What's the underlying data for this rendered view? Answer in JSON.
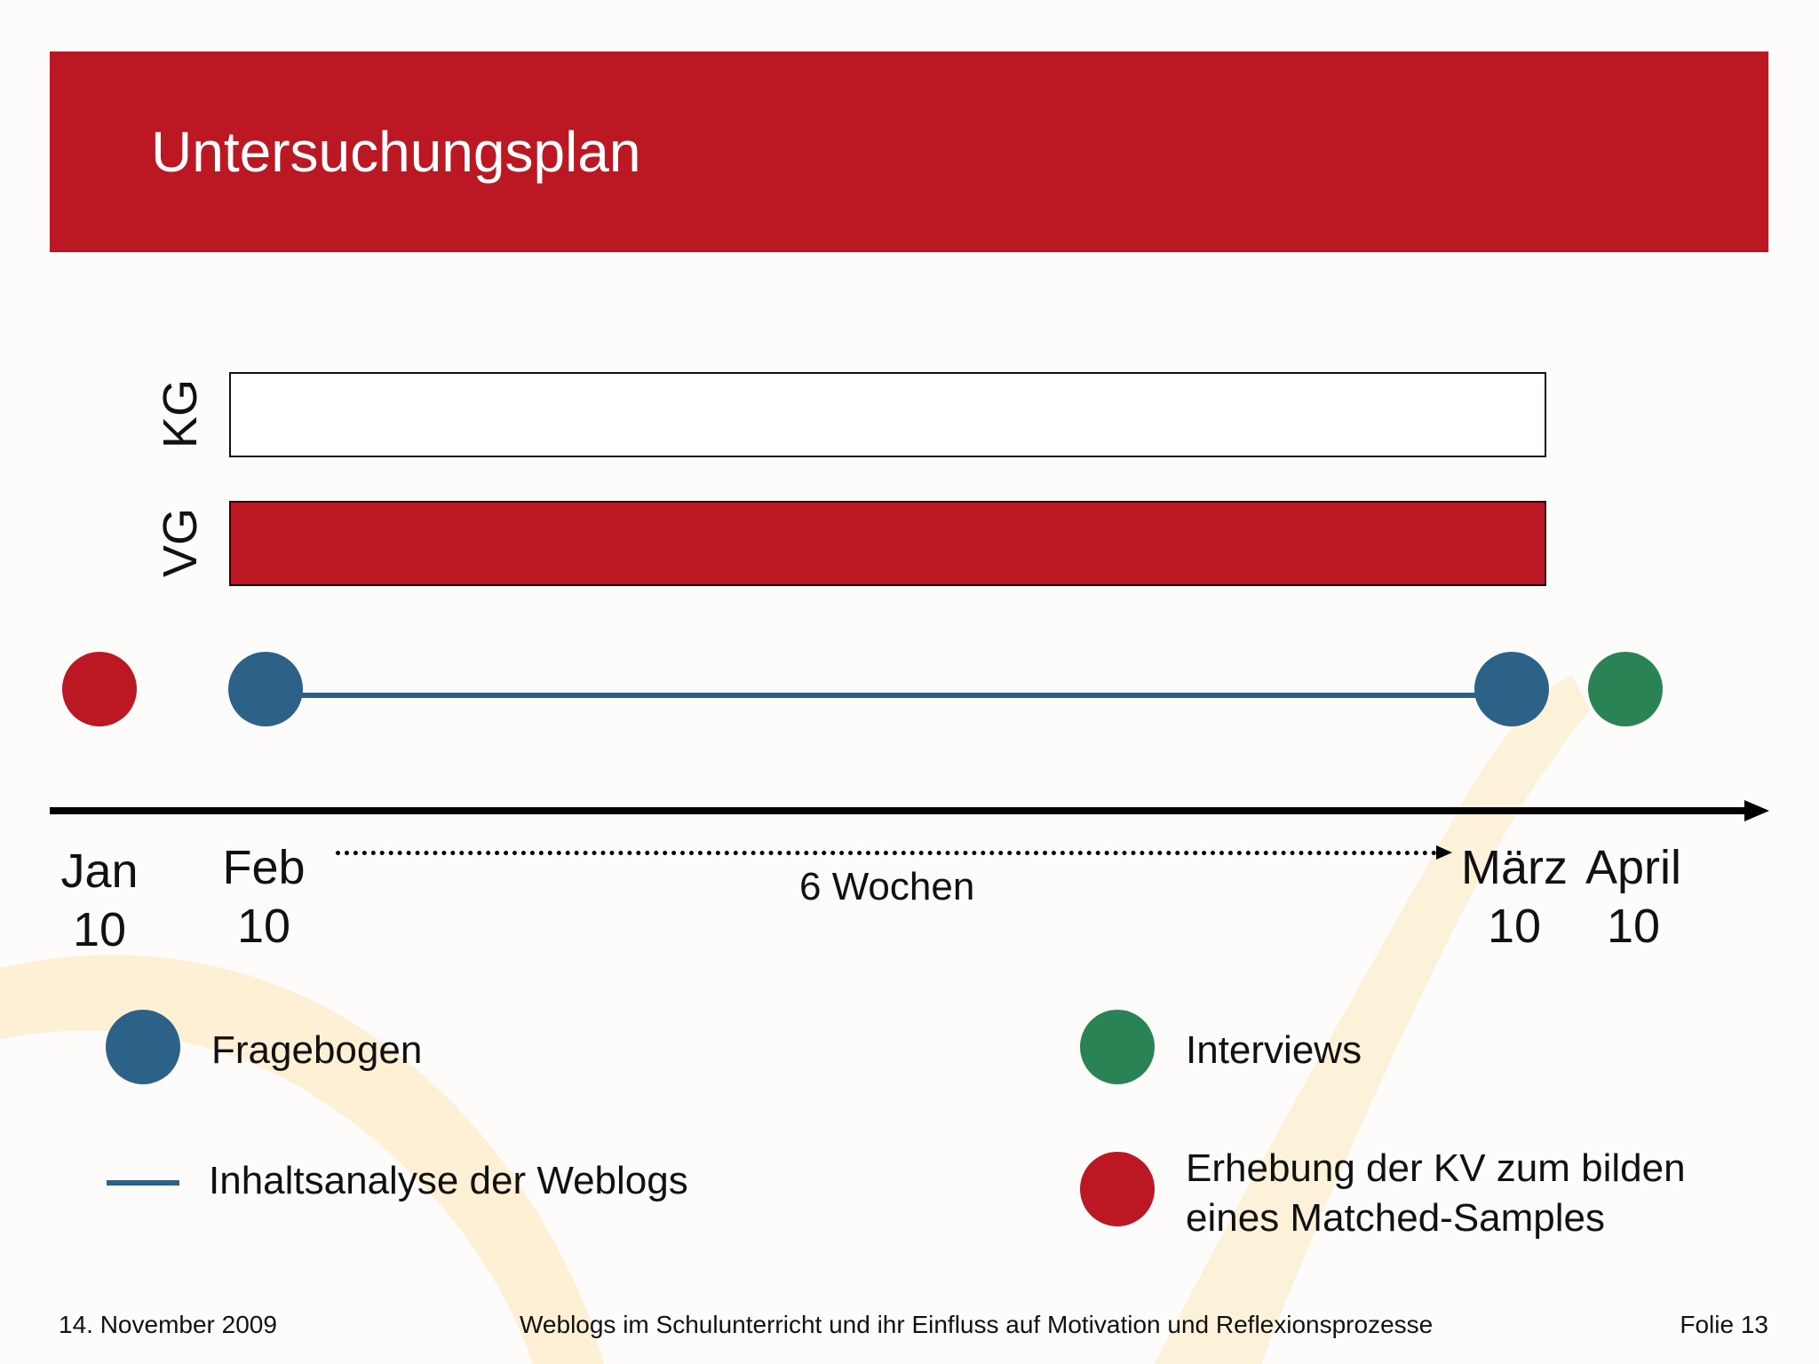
{
  "slide": {
    "title": "Untersuchungsplan",
    "colors": {
      "brand_red": "#bb1823",
      "blue": "#2c6288",
      "green": "#2a8355",
      "swoosh": "#fcebc4"
    }
  },
  "groups": [
    {
      "label": "KG"
    },
    {
      "label": "VG"
    }
  ],
  "timeline": {
    "ticks": [
      {
        "month": "Jan",
        "year": "10"
      },
      {
        "month": "Feb",
        "year": "10"
      },
      {
        "month": "März",
        "year": "10"
      },
      {
        "month": "April",
        "year": "10"
      }
    ],
    "duration_label": "6 Wochen"
  },
  "legend": {
    "fragebogen": "Fragebogen",
    "inhaltsanalyse": "Inhaltsanalyse der Weblogs",
    "interviews": "Interviews",
    "erhebung_line1": "Erhebung der KV zum bilden",
    "erhebung_line2": "eines Matched-Samples"
  },
  "footer": {
    "date": "14. November 2009",
    "subject": "Weblogs im Schulunterricht und ihr Einfluss auf Motivation und Reflexionsprozesse",
    "slide_number": "Folie 13"
  }
}
